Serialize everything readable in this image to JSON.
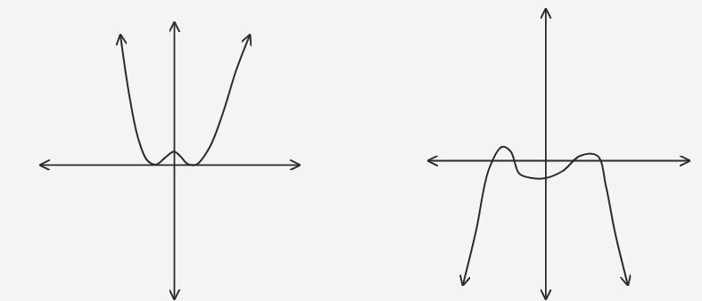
{
  "chart_data": [
    {
      "type": "line",
      "x": [
        -6,
        -5,
        -4,
        -3,
        -2,
        -1,
        0,
        0.7,
        1.5,
        2.5,
        4,
        5.5,
        7,
        8.5
      ],
      "values": [
        15,
        8,
        3,
        0.5,
        0,
        0.8,
        1.5,
        1,
        0.1,
        0,
        2,
        6,
        11,
        15
      ],
      "xlim": [
        -15,
        14
      ],
      "ylim": [
        -15.5,
        16.5
      ],
      "tick_labels": false,
      "color": "#2b2b2b"
    },
    {
      "type": "line",
      "x": [
        -9.5,
        -8,
        -6.5,
        -5,
        -4,
        -3,
        -1.5,
        0,
        2,
        4,
        6,
        7,
        8,
        9.5
      ],
      "values": [
        -14,
        -8,
        -1,
        1.5,
        1,
        -1.5,
        -2,
        -2,
        -1.2,
        0.5,
        0.5,
        -3,
        -8,
        -14
      ],
      "xlim": [
        -13.5,
        16.5
      ],
      "ylim": [
        -15.5,
        17
      ],
      "tick_labels": false,
      "color": "#2b2b2b"
    }
  ]
}
